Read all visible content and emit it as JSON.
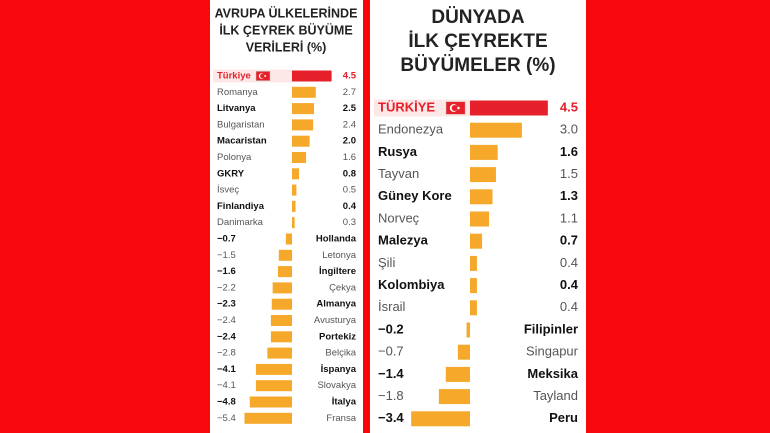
{
  "chart_data": [
    {
      "type": "diverging-bar",
      "title_lines": [
        "AVRUPA ÜLKELERİNDE",
        "İLK ÇEYREK BÜYÜME",
        "VERİLERİ (%)"
      ],
      "categories": [
        "Türkiye",
        "Romanya",
        "Litvanya",
        "Bulgaristan",
        "Macaristan",
        "Polonya",
        "GKRY",
        "İsveç",
        "Finlandiya",
        "Danimarka",
        "Hollanda",
        "Letonya",
        "İngiltere",
        "Çekya",
        "Almanya",
        "Avusturya",
        "Portekiz",
        "Belçika",
        "İspanya",
        "Slovakya",
        "İtalya",
        "Fransa"
      ],
      "values": [
        4.5,
        2.7,
        2.5,
        2.4,
        2.0,
        1.6,
        0.8,
        0.5,
        0.4,
        0.3,
        -0.7,
        -1.5,
        -1.6,
        -2.2,
        -2.3,
        -2.4,
        -2.4,
        -2.8,
        -4.1,
        -4.1,
        -4.8,
        -5.4
      ],
      "value_labels": [
        "4.5",
        "2.7",
        "2.5",
        "2.4",
        "2.0",
        "1.6",
        "0.8",
        "0.5",
        "0.4",
        "0.3",
        "−0.7",
        "−1.5",
        "−1.6",
        "−2.2",
        "−2.3",
        "−2.4",
        "−2.4",
        "−2.8",
        "−4.1",
        "−4.1",
        "−4.8",
        "−5.4"
      ],
      "color": "#f6a82a",
      "highlight_color": "#e5202a"
    },
    {
      "type": "diverging-bar",
      "title_lines": [
        "DÜNYADA",
        "İLK ÇEYREKTE",
        "BÜYÜMELER (%)"
      ],
      "categories": [
        "TÜRKİYE",
        "Endonezya",
        "Rusya",
        "Tayvan",
        "Güney Kore",
        "Norveç",
        "Malezya",
        "Şili",
        "Kolombiya",
        "İsrail",
        "Filipinler",
        "Singapur",
        "Meksika",
        "Tayland",
        "Peru"
      ],
      "values": [
        4.5,
        3.0,
        1.6,
        1.5,
        1.3,
        1.1,
        0.7,
        0.4,
        0.4,
        0.4,
        -0.2,
        -0.7,
        -1.4,
        -1.8,
        -3.4
      ],
      "value_labels": [
        "4.5",
        "3.0",
        "1.6",
        "1.5",
        "1.3",
        "1.1",
        "0.7",
        "0.4",
        "0.4",
        "0.4",
        "−0.2",
        "−0.7",
        "−1.4",
        "−1.8",
        "−3.4"
      ],
      "color": "#f6a82a",
      "highlight_color": "#e5202a"
    }
  ]
}
